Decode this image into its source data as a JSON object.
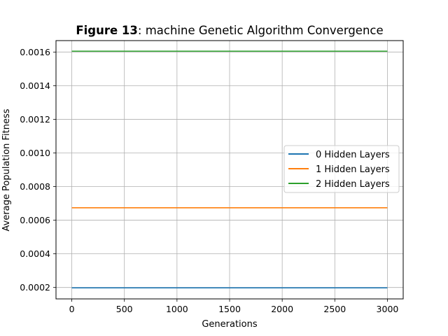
{
  "chart_data": {
    "type": "line",
    "title_bold": "Figure 13",
    "title_rest": ": machine Genetic Algorithm Convergence",
    "xlabel": "Generations",
    "ylabel": "Average Population Fitness",
    "xlim": [
      -150,
      3150
    ],
    "ylim": [
      0.000132,
      0.001668
    ],
    "xticks": [
      0,
      500,
      1000,
      1500,
      2000,
      2500,
      3000
    ],
    "xtick_labels": [
      "0",
      "500",
      "1000",
      "1500",
      "2000",
      "2500",
      "3000"
    ],
    "yticks": [
      0.0002,
      0.0004,
      0.0006,
      0.0008,
      0.001,
      0.0012,
      0.0014,
      0.0016
    ],
    "ytick_labels": [
      "0.0002",
      "0.0004",
      "0.0006",
      "0.0008",
      "0.0010",
      "0.0012",
      "0.0014",
      "0.0016"
    ],
    "grid": true,
    "legend_position": "center-right",
    "series": [
      {
        "name": "0 Hidden Layers",
        "color": "#1f77b4",
        "x": [
          0,
          3000
        ],
        "y": [
          0.000198,
          0.000198
        ]
      },
      {
        "name": "1 Hidden Layers",
        "color": "#ff7f0e",
        "x": [
          0,
          3000
        ],
        "y": [
          0.000674,
          0.000674
        ]
      },
      {
        "name": "2 Hidden Layers",
        "color": "#2ca02c",
        "x": [
          0,
          3000
        ],
        "y": [
          0.001605,
          0.001605
        ]
      }
    ]
  }
}
